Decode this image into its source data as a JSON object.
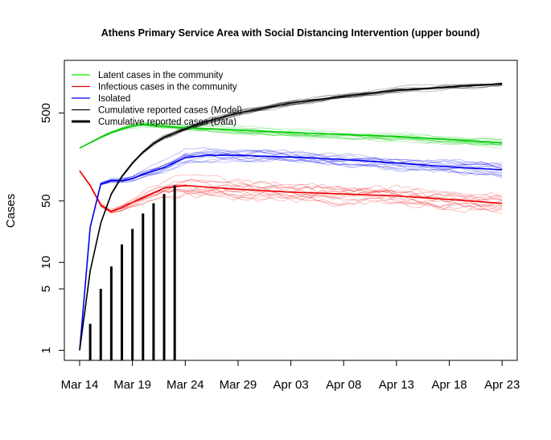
{
  "chart_data": {
    "type": "line",
    "title": "Athens Primary Service Area with Social Distancing Intervention (upper bound)",
    "xlabel": "",
    "ylabel": "Cases",
    "y_scale": "log",
    "ylim": [
      0.78,
      1400
    ],
    "y_ticks": [
      1,
      5,
      10,
      50,
      500
    ],
    "y_tick_labels": [
      "1",
      "5",
      "10",
      "50",
      "500"
    ],
    "x_ticks": [
      "Mar 14",
      "Mar 19",
      "Mar 24",
      "Mar 29",
      "Apr 03",
      "Apr 08",
      "Apr 13",
      "Apr 18",
      "Apr 23"
    ],
    "x_range": [
      "Mar 14",
      "Apr 23"
    ],
    "legend_position": "top-left",
    "legend": [
      {
        "label": "Latent cases in the community",
        "color": "#00ee00",
        "width": 1
      },
      {
        "label": "Infectious cases in the community",
        "color": "#dd0000",
        "width": 1
      },
      {
        "label": "Isolated",
        "color": "#0000ee",
        "width": 1
      },
      {
        "label": "Cumulative reported cases (Model)",
        "color": "#000000",
        "width": 1
      },
      {
        "label": "Cumulative reported cases (Data)",
        "color": "#000000",
        "width": 3
      }
    ],
    "series": [
      {
        "name": "Latent cases in the community",
        "color": "#00cc00",
        "x": [
          "Mar 14",
          "Mar 15",
          "Mar 16",
          "Mar 17",
          "Mar 18",
          "Mar 19",
          "Mar 20",
          "Mar 22",
          "Mar 24",
          "Mar 29",
          "Apr 03",
          "Apr 08",
          "Apr 13",
          "Apr 18",
          "Apr 23"
        ],
        "values": [
          200,
          230,
          265,
          300,
          330,
          355,
          370,
          355,
          340,
          320,
          300,
          285,
          270,
          250,
          230
        ]
      },
      {
        "name": "Infectious cases in the community",
        "color": "#ee0000",
        "x": [
          "Mar 14",
          "Mar 15",
          "Mar 16",
          "Mar 17",
          "Mar 18",
          "Mar 19",
          "Mar 20",
          "Mar 21",
          "Mar 22",
          "Mar 24",
          "Mar 26",
          "Mar 29",
          "Apr 03",
          "Apr 08",
          "Apr 13",
          "Apr 18",
          "Apr 23"
        ],
        "values": [
          110,
          75,
          45,
          38,
          42,
          48,
          55,
          62,
          70,
          75,
          72,
          68,
          63,
          60,
          57,
          52,
          47
        ]
      },
      {
        "name": "Isolated",
        "color": "#0000ee",
        "x": [
          "Mar 14",
          "Mar 15",
          "Mar 16",
          "Mar 17",
          "Mar 18",
          "Mar 19",
          "Mar 20",
          "Mar 22",
          "Mar 24",
          "Mar 26",
          "Mar 29",
          "Apr 03",
          "Apr 08",
          "Apr 13",
          "Apr 18",
          "Apr 23"
        ],
        "values": [
          1,
          25,
          78,
          85,
          85,
          90,
          100,
          120,
          155,
          165,
          165,
          158,
          148,
          135,
          122,
          113
        ]
      },
      {
        "name": "Cumulative reported cases (Model)",
        "color": "#000000",
        "x": [
          "Mar 14",
          "Mar 15",
          "Mar 16",
          "Mar 17",
          "Mar 18",
          "Mar 19",
          "Mar 20",
          "Mar 21",
          "Mar 22",
          "Mar 24",
          "Mar 26",
          "Mar 29",
          "Apr 03",
          "Apr 08",
          "Apr 13",
          "Apr 18",
          "Apr 23"
        ],
        "values": [
          1,
          8,
          28,
          60,
          95,
          135,
          180,
          225,
          265,
          330,
          400,
          500,
          650,
          780,
          900,
          990,
          1080
        ]
      },
      {
        "name": "Cumulative reported cases (Data)",
        "color": "#000000",
        "style": "bars",
        "x": [
          "Mar 15",
          "Mar 16",
          "Mar 17",
          "Mar 18",
          "Mar 19",
          "Mar 20",
          "Mar 21",
          "Mar 22",
          "Mar 23"
        ],
        "values": [
          2,
          5,
          9,
          16,
          24,
          36,
          47,
          60,
          75
        ]
      }
    ]
  }
}
